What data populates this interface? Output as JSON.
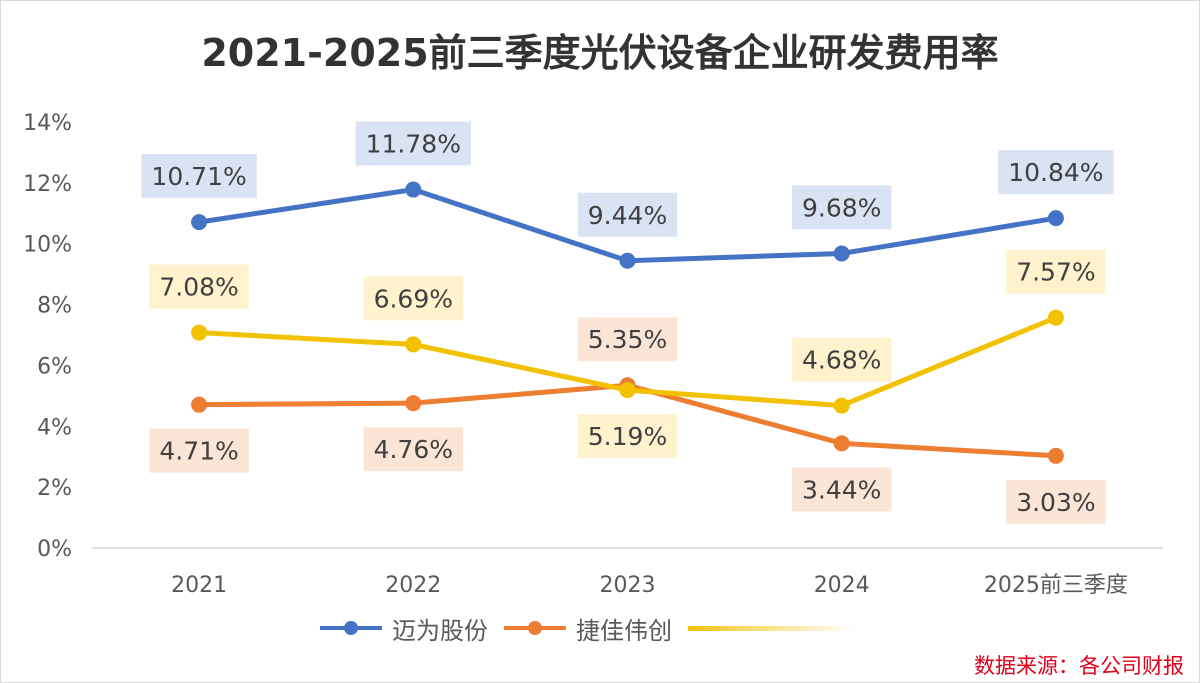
{
  "chart_data": {
    "type": "line",
    "title": "2021-2025前三季度光伏设备企业研发费用率",
    "categories": [
      "2021",
      "2022",
      "2023",
      "2024",
      "2025前三季度"
    ],
    "ylim": [
      0,
      14
    ],
    "yticks": [
      "0%",
      "2%",
      "4%",
      "6%",
      "8%",
      "10%",
      "12%",
      "14%"
    ],
    "ytick_values": [
      0,
      2,
      4,
      6,
      8,
      10,
      12,
      14
    ],
    "grid": false,
    "series": [
      {
        "name": "迈为股份",
        "color": "#4472c4",
        "label_bg": "#dae3f3",
        "values": [
          10.71,
          11.78,
          9.44,
          9.68,
          10.84
        ],
        "labels": [
          "10.71%",
          "11.78%",
          "9.44%",
          "9.68%",
          "10.84%"
        ],
        "label_pos": [
          "above",
          "above",
          "above",
          "above",
          "above"
        ]
      },
      {
        "name": "捷佳伟创",
        "color": "#ed7d31",
        "label_bg": "#fbe5d6",
        "values": [
          4.71,
          4.76,
          5.35,
          3.44,
          3.03
        ],
        "labels": [
          "4.71%",
          "4.76%",
          "5.35%",
          "3.44%",
          "3.03%"
        ],
        "label_pos": [
          "below",
          "below",
          "above",
          "below",
          "below"
        ]
      },
      {
        "name": "",
        "color": "#f2c100",
        "label_bg": "#fff2cc",
        "values": [
          7.08,
          6.69,
          5.19,
          4.68,
          7.57
        ],
        "labels": [
          "7.08%",
          "6.69%",
          "5.19%",
          "4.68%",
          "7.57%"
        ],
        "label_pos": [
          "above",
          "above",
          "below",
          "above",
          "above"
        ]
      }
    ],
    "legend": {
      "position": "bottom",
      "entries": [
        "迈为股份",
        "捷佳伟创"
      ]
    }
  },
  "footer": {
    "source": "数据来源：各公司财报"
  }
}
